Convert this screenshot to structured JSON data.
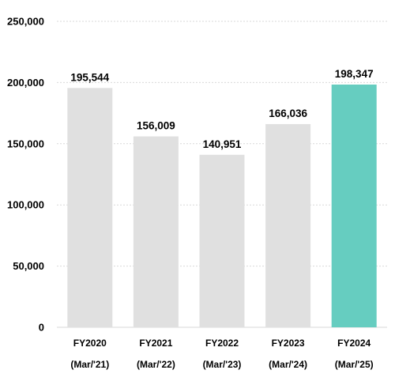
{
  "chart_data": {
    "type": "bar",
    "categories": [
      "FY2020",
      "FY2021",
      "FY2022",
      "FY2023",
      "FY2024"
    ],
    "subcategories": [
      "(Mar/'21)",
      "(Mar/'22)",
      "(Mar/'23)",
      "(Mar/'24)",
      "(Mar/'25)"
    ],
    "values": [
      195544,
      156009,
      140951,
      166036,
      198347
    ],
    "value_labels": [
      "195,544",
      "156,009",
      "140,951",
      "166,036",
      "198,347"
    ],
    "title": "",
    "xlabel": "",
    "ylabel": "",
    "ylim": [
      0,
      250000
    ],
    "yticks": [
      0,
      50000,
      100000,
      150000,
      200000,
      250000
    ],
    "ytick_labels": [
      "0",
      "50,000",
      "100,000",
      "150,000",
      "200,000",
      "250,000"
    ],
    "grid": true,
    "legend": "none",
    "colors": {
      "default_bar": "#e0e0e0",
      "highlight_bar": "#66cdc0",
      "gridline": "#d9d9d9",
      "text": "#000000"
    },
    "highlight_index": 4
  }
}
